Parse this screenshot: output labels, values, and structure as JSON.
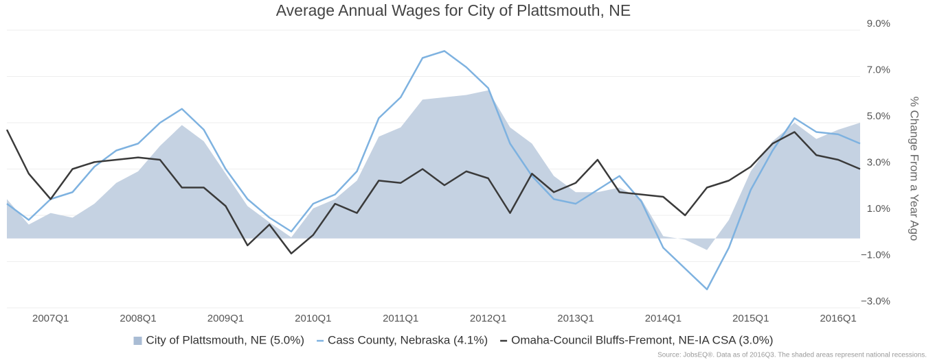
{
  "chart_data": {
    "type": "line",
    "title": "Average Annual Wages for City of Plattsmouth, NE",
    "y_label": "% Change From a Year Ago",
    "source": "Source: JobsEQ®. Data as of 2016Q3. The shaded areas represent national recessions.",
    "categories": [
      null,
      null,
      "2007Q1",
      null,
      null,
      null,
      "2008Q1",
      null,
      null,
      null,
      "2009Q1",
      null,
      null,
      null,
      "2010Q1",
      null,
      null,
      null,
      "2011Q1",
      null,
      null,
      null,
      "2012Q1",
      null,
      null,
      null,
      "2013Q1",
      null,
      null,
      null,
      "2014Q1",
      null,
      null,
      null,
      "2015Q1",
      null,
      null,
      null,
      "2016Q1",
      null
    ],
    "ylim": [
      -3,
      9
    ],
    "yticks": [
      {
        "value": -3,
        "label": "−3.0%"
      },
      {
        "value": -1,
        "label": "−1.0%"
      },
      {
        "value": 1,
        "label": "1.0%"
      },
      {
        "value": 3,
        "label": "3.0%"
      },
      {
        "value": 5,
        "label": "5.0%"
      },
      {
        "value": 7,
        "label": "7.0%"
      },
      {
        "value": 9,
        "label": "9.0%"
      }
    ],
    "grid": true,
    "legend": "bottom",
    "series": [
      {
        "name": "City of Plattsmouth, NE (5.0%)",
        "color": "#c5d2e2",
        "kind": "area",
        "values": [
          1.7,
          0.6,
          1.1,
          0.9,
          1.5,
          2.4,
          2.9,
          4.0,
          4.9,
          4.2,
          2.8,
          1.4,
          0.7,
          0.05,
          1.3,
          1.7,
          2.5,
          4.4,
          4.8,
          6.0,
          6.1,
          6.2,
          6.4,
          4.8,
          4.1,
          2.7,
          2.0,
          2.0,
          2.2,
          1.7,
          0.1,
          -0.05,
          -0.5,
          0.8,
          2.9,
          4.2,
          5.0,
          4.3,
          4.7,
          5.0
        ]
      },
      {
        "name": "Cass County, Nebraska (4.1%)",
        "color": "#7eb2e0",
        "kind": "line",
        "values": [
          1.5,
          0.8,
          1.7,
          2.0,
          3.1,
          3.8,
          4.1,
          5.0,
          5.6,
          4.7,
          3.0,
          1.7,
          0.9,
          0.3,
          1.5,
          1.9,
          2.9,
          5.2,
          6.1,
          7.8,
          8.1,
          7.4,
          6.5,
          4.1,
          2.7,
          1.7,
          1.5,
          2.1,
          2.7,
          1.6,
          -0.4,
          -1.3,
          -2.2,
          -0.4,
          2.1,
          3.8,
          5.2,
          4.6,
          4.5,
          4.1
        ]
      },
      {
        "name": "Omaha-Council Bluffs-Fremont, NE-IA CSA (3.0%)",
        "color": "#3a3a3a",
        "kind": "line",
        "values": [
          4.7,
          2.8,
          1.7,
          3.0,
          3.3,
          3.4,
          3.5,
          3.4,
          2.2,
          2.2,
          1.4,
          -0.3,
          0.6,
          -0.65,
          0.15,
          1.5,
          1.1,
          2.5,
          2.4,
          3.0,
          2.3,
          2.9,
          2.6,
          1.1,
          2.8,
          2.0,
          2.4,
          3.4,
          2.0,
          1.9,
          1.8,
          1.0,
          2.2,
          2.5,
          3.1,
          4.1,
          4.6,
          3.6,
          3.4,
          3.0
        ]
      }
    ]
  }
}
